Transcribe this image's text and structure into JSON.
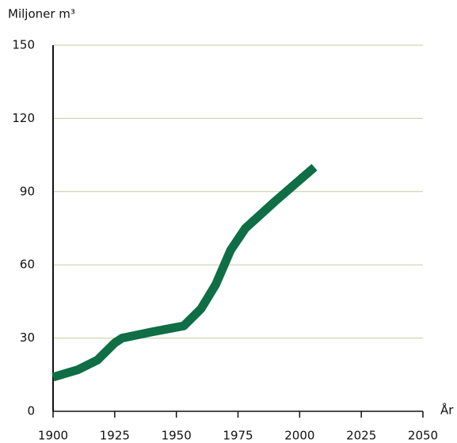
{
  "chart_data": {
    "type": "line",
    "y_label": "Miljoner m³",
    "x_label": "År",
    "x": [
      1900,
      1910,
      1918,
      1925,
      1928,
      1940,
      1953,
      1960,
      1966,
      1972,
      1978,
      1990,
      2006
    ],
    "series": [
      {
        "color": "#0f6e45",
        "values": [
          14,
          17,
          21,
          28,
          30,
          32.5,
          35,
          42,
          52,
          66,
          75,
          86,
          100
        ]
      }
    ],
    "xlim": [
      1900,
      2050
    ],
    "xticks": [
      1900,
      1925,
      1950,
      1975,
      2000,
      2025,
      2050
    ],
    "ylim": [
      0,
      150
    ],
    "yticks": [
      0,
      30,
      60,
      90,
      120,
      150
    ],
    "grid": true
  }
}
